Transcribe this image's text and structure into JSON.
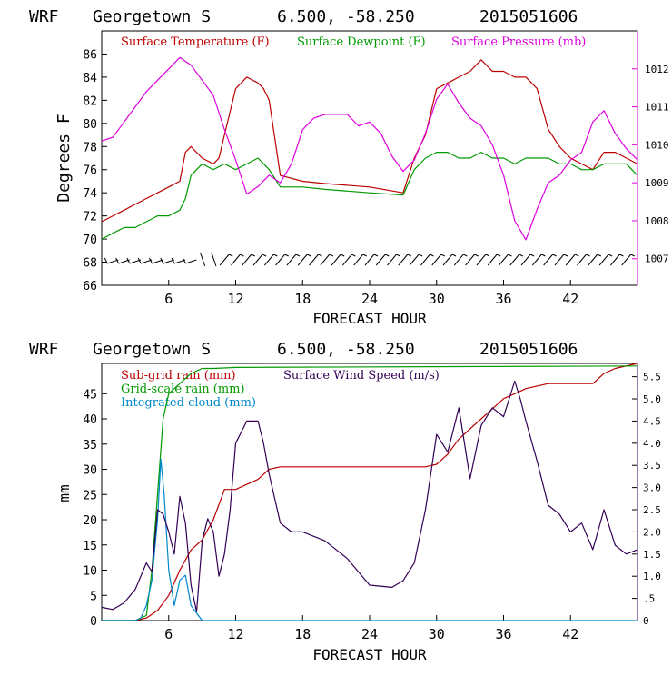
{
  "panels": [
    {
      "header": {
        "model": "WRF",
        "station": "Georgetown S",
        "coords": "6.500, -58.250",
        "run": "2015051606"
      },
      "xlabel": "FORECAST HOUR",
      "ylabel_left": "Degrees F",
      "legend": [
        {
          "label": "Surface Temperature (F)",
          "color": "#bb0000"
        },
        {
          "label": "Surface Dewpoint (F)",
          "color": "#009900"
        },
        {
          "label": "Surface Pressure (mb)",
          "color": "#dd00dd"
        }
      ]
    },
    {
      "header": {
        "model": "WRF",
        "station": "Georgetown S",
        "coords": "6.500, -58.250",
        "run": "2015051606"
      },
      "xlabel": "FORECAST HOUR",
      "ylabel_left": "mm",
      "legend": [
        {
          "label": "Sub-grid rain (mm)",
          "color": "#bb0000"
        },
        {
          "label": "Surface Wind Speed (m/s)",
          "color": "#330055"
        },
        {
          "label": "Grid-scale rain (mm)",
          "color": "#009900"
        },
        {
          "label": "Integrated cloud (mm)",
          "color": "#0088cc"
        }
      ]
    }
  ],
  "chart_data": [
    {
      "type": "line",
      "x_ticks": [
        "6",
        "12",
        "18",
        "24",
        "30",
        "36",
        "42"
      ],
      "x_tick_values": [
        6,
        12,
        18,
        24,
        30,
        36,
        42
      ],
      "xlim": [
        0,
        48
      ],
      "ylim_left": [
        66,
        88
      ],
      "y_ticks_left": [
        "66",
        "68",
        "70",
        "72",
        "74",
        "76",
        "78",
        "80",
        "82",
        "84",
        "86"
      ],
      "ylim_right": [
        1006.3,
        1013.0
      ],
      "y_ticks_right": [
        "1007",
        "1008",
        "1009",
        "1010",
        "1011",
        "1012"
      ],
      "series": [
        {
          "name": "Surface Temperature (F)",
          "axis": "left",
          "color": "#bb0000",
          "x": [
            0,
            1,
            2,
            3,
            4,
            5,
            6,
            7,
            7.5,
            8,
            9,
            10,
            10.5,
            11,
            12,
            13,
            14,
            14.5,
            15,
            16,
            18,
            20,
            24,
            27,
            28,
            29,
            30,
            31,
            32,
            33,
            34,
            35,
            36,
            37,
            38,
            39,
            40,
            41,
            42,
            43,
            44,
            45,
            46,
            47,
            48
          ],
          "y": [
            71.5,
            72,
            72.5,
            73,
            73.5,
            74,
            74.5,
            75,
            77.5,
            78,
            77,
            76.5,
            77,
            79,
            83,
            84,
            83.5,
            83,
            82,
            75.5,
            75,
            74.8,
            74.5,
            74,
            77,
            79,
            83,
            83.5,
            84,
            84.5,
            85.5,
            84.5,
            84.5,
            84,
            84,
            83,
            79.5,
            78,
            77,
            76.5,
            76,
            77.5,
            77.5,
            77,
            76.5
          ]
        },
        {
          "name": "Surface Dewpoint (F)",
          "axis": "left",
          "color": "#009900",
          "x": [
            0,
            1,
            2,
            3,
            4,
            5,
            6,
            7,
            7.5,
            8,
            9,
            10,
            11,
            12,
            13,
            14,
            15,
            16,
            18,
            20,
            24,
            27,
            28,
            29,
            30,
            31,
            32,
            33,
            34,
            35,
            36,
            37,
            38,
            39,
            40,
            41,
            42,
            43,
            44,
            45,
            46,
            47,
            48
          ],
          "y": [
            70,
            70.5,
            71,
            71,
            71.5,
            72,
            72,
            72.5,
            73.5,
            75.5,
            76.5,
            76,
            76.5,
            76,
            76.5,
            77,
            76,
            74.5,
            74.5,
            74.3,
            74,
            73.8,
            76,
            77,
            77.5,
            77.5,
            77,
            77,
            77.5,
            77,
            77,
            76.5,
            77,
            77,
            77,
            76.5,
            76.5,
            76,
            76,
            76.5,
            76.5,
            76.5,
            75.5
          ]
        },
        {
          "name": "Surface Pressure (mb)",
          "axis": "right",
          "color": "#dd00dd",
          "x": [
            0,
            1,
            2,
            3,
            4,
            5,
            6,
            7,
            8,
            9,
            10,
            11,
            12,
            13,
            14,
            15,
            16,
            17,
            18,
            19,
            20,
            22,
            23,
            24,
            25,
            26,
            27,
            28,
            29,
            30,
            31,
            32,
            33,
            34,
            35,
            36,
            37,
            38,
            39,
            40,
            41,
            42,
            43,
            44,
            45,
            46,
            47,
            48
          ],
          "y": [
            1010.1,
            1010.2,
            1010.6,
            1011.0,
            1011.4,
            1011.7,
            1012.0,
            1012.3,
            1012.1,
            1011.7,
            1011.3,
            1010.4,
            1009.6,
            1008.7,
            1008.9,
            1009.2,
            1009.0,
            1009.5,
            1010.4,
            1010.7,
            1010.8,
            1010.8,
            1010.5,
            1010.6,
            1010.3,
            1009.7,
            1009.3,
            1009.6,
            1010.3,
            1011.2,
            1011.6,
            1011.1,
            1010.7,
            1010.5,
            1010.0,
            1009.2,
            1008.0,
            1007.5,
            1008.3,
            1009.0,
            1009.2,
            1009.6,
            1009.8,
            1010.6,
            1010.9,
            1010.3,
            1009.9,
            1009.6
          ]
        }
      ],
      "wind_barbs": true
    },
    {
      "type": "line",
      "x_ticks": [
        "6",
        "12",
        "18",
        "24",
        "30",
        "36",
        "42"
      ],
      "x_tick_values": [
        6,
        12,
        18,
        24,
        30,
        36,
        42
      ],
      "xlim": [
        0,
        48
      ],
      "ylim_left": [
        0,
        51
      ],
      "y_ticks_left": [
        "0",
        "5",
        "10",
        "15",
        "20",
        "25",
        "30",
        "35",
        "40",
        "45"
      ],
      "ylim_right": [
        0,
        5.8
      ],
      "y_ticks_right": [
        "0",
        ".5",
        "1.0",
        "1.5",
        "2.0",
        "2.5",
        "3.0",
        "3.5",
        "4.0",
        "4.5",
        "5.0",
        "5.5"
      ],
      "series": [
        {
          "name": "Sub-grid rain (mm)",
          "axis": "left",
          "color": "#bb0000",
          "x": [
            0,
            3,
            4,
            5,
            6,
            7,
            8,
            9,
            10,
            11,
            12,
            14,
            15,
            16,
            18,
            24,
            28,
            29,
            30,
            31,
            32,
            33,
            34,
            35,
            36,
            37,
            38,
            40,
            44,
            45,
            46,
            48
          ],
          "y": [
            0,
            0,
            0.5,
            2,
            5,
            10,
            14,
            16,
            20,
            26,
            26,
            28,
            30,
            30.5,
            30.5,
            30.5,
            30.5,
            30.5,
            31,
            33,
            36,
            38,
            40,
            42,
            44,
            45,
            46,
            47,
            47,
            49,
            50,
            51
          ]
        },
        {
          "name": "Grid-scale rain (mm)",
          "axis": "left",
          "color": "#009900",
          "x": [
            0,
            3,
            4,
            4.5,
            5,
            5.5,
            6,
            7,
            8,
            9,
            10,
            12,
            48
          ],
          "y": [
            0,
            0,
            1,
            10,
            25,
            40,
            45,
            47,
            49,
            50,
            50,
            50.2,
            50.5
          ]
        },
        {
          "name": "Integrated cloud (mm)",
          "axis": "left",
          "color": "#0088cc",
          "x": [
            0,
            3,
            3.5,
            4,
            4.5,
            5,
            5.3,
            5.6,
            6,
            6.5,
            7,
            7.5,
            8,
            9,
            48
          ],
          "y": [
            0,
            0,
            0.5,
            3,
            8,
            20,
            32,
            25,
            10,
            3,
            8,
            9,
            3,
            0,
            0
          ]
        },
        {
          "name": "Surface Wind Speed (m/s)",
          "axis": "right",
          "color": "#330055",
          "x": [
            0,
            1,
            2,
            3,
            4,
            4.5,
            5,
            5.5,
            6,
            6.5,
            7,
            7.5,
            8,
            8.5,
            9,
            9.5,
            10,
            10.5,
            11,
            11.5,
            12,
            13,
            14,
            14.5,
            15,
            16,
            17,
            18,
            20,
            22,
            24,
            26,
            27,
            28,
            29,
            30,
            31,
            32,
            33,
            34,
            35,
            36,
            37,
            37.5,
            38,
            39,
            40,
            41,
            42,
            43,
            44,
            45,
            46,
            47,
            48
          ],
          "y": [
            0.3,
            0.25,
            0.4,
            0.7,
            1.3,
            1.1,
            2.5,
            2.4,
            2.0,
            1.5,
            2.8,
            2.2,
            0.8,
            0.2,
            1.8,
            2.3,
            2.0,
            1.0,
            1.5,
            2.5,
            4.0,
            4.5,
            4.5,
            4.0,
            3.3,
            2.2,
            2.0,
            2.0,
            1.8,
            1.4,
            0.8,
            0.75,
            0.9,
            1.3,
            2.5,
            4.2,
            3.8,
            4.8,
            3.2,
            4.4,
            4.8,
            4.6,
            5.4,
            5.0,
            4.5,
            3.6,
            2.6,
            2.4,
            2.0,
            2.2,
            1.6,
            2.5,
            1.7,
            1.5,
            1.6
          ]
        }
      ]
    }
  ]
}
